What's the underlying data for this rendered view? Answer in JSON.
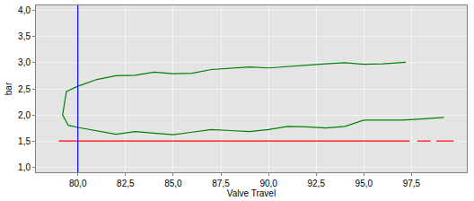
{
  "chart_data": {
    "type": "line",
    "x_label": "Valve Travel",
    "y_label": "bar",
    "xlim": [
      77.8,
      100.4
    ],
    "xticks": [
      {
        "value": 80,
        "label": "80,0"
      },
      {
        "value": 82.5,
        "label": "82,5"
      },
      {
        "value": 85,
        "label": "85,0"
      },
      {
        "value": 87.5,
        "label": "87,5"
      },
      {
        "value": 90,
        "label": "90,0"
      },
      {
        "value": 92.5,
        "label": "92,5"
      },
      {
        "value": 95,
        "label": "95,0"
      },
      {
        "value": 97.5,
        "label": "97,5"
      }
    ],
    "ylim": [
      0.9,
      4.1
    ],
    "yticks": [
      {
        "value": 1,
        "label": "1,0"
      },
      {
        "value": 1.5,
        "label": "1,5"
      },
      {
        "value": 2,
        "label": "2,0"
      },
      {
        "value": 2.5,
        "label": "2,5"
      },
      {
        "value": 3,
        "label": "3,0"
      },
      {
        "value": 3.5,
        "label": "3,5"
      },
      {
        "value": 4,
        "label": "4,0"
      }
    ],
    "grid": true,
    "series": [
      {
        "color": "#008000",
        "line_style": "solid",
        "x": [
          97.2,
          96,
          95,
          94,
          93,
          92,
          91,
          90,
          89,
          88,
          87,
          86,
          85,
          84,
          83,
          82,
          81,
          80,
          79.4,
          79.2,
          79.5,
          80,
          81,
          82,
          83,
          84,
          85,
          86,
          87,
          88,
          89,
          90,
          91,
          92,
          93,
          94,
          95,
          96,
          97,
          98,
          99.2
        ],
        "values": [
          3.01,
          2.98,
          2.97,
          3.0,
          2.98,
          2.95,
          2.92,
          2.9,
          2.92,
          2.9,
          2.87,
          2.8,
          2.79,
          2.82,
          2.76,
          2.75,
          2.68,
          2.55,
          2.45,
          2.0,
          1.8,
          1.76,
          1.7,
          1.63,
          1.68,
          1.65,
          1.62,
          1.67,
          1.72,
          1.7,
          1.68,
          1.72,
          1.78,
          1.77,
          1.75,
          1.78,
          1.9,
          1.9,
          1.9,
          1.92,
          1.95
        ]
      },
      {
        "color": "#ff0000",
        "line_style": "solid",
        "x": [
          79.0,
          97.4,
          97.6,
          97.8,
          98.5,
          98.65,
          98.8,
          99.7
        ],
        "values": [
          1.5,
          1.5,
          null,
          1.5,
          1.5,
          null,
          1.5,
          1.5
        ]
      },
      {
        "color": "#0000ff",
        "line_style": "solid",
        "x": [
          80,
          80
        ],
        "values": [
          0.9,
          4.1
        ]
      }
    ]
  }
}
